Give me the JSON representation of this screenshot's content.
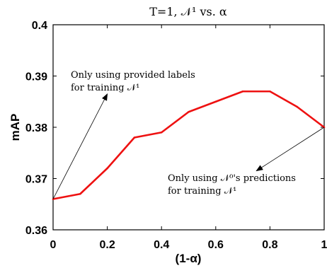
{
  "chart_data": {
    "type": "line",
    "title": "T=1, 𝒩¹ vs. α",
    "xlabel": "(1-α)",
    "ylabel": "mAP",
    "xlim": [
      0,
      1
    ],
    "ylim": [
      0.36,
      0.4
    ],
    "x_ticks": [
      0,
      0.2,
      0.4,
      0.6,
      0.8,
      1
    ],
    "y_ticks": [
      0.36,
      0.37,
      0.38,
      0.39,
      0.4
    ],
    "x_tick_labels": [
      "0",
      "0.2",
      "0.4",
      "0.6",
      "0.8",
      "1"
    ],
    "y_tick_labels": [
      "0.36",
      "0.37",
      "0.38",
      "0.39",
      "0.4"
    ],
    "grid": false,
    "series": [
      {
        "color": "#ee1111",
        "x": [
          0,
          0.1,
          0.2,
          0.3,
          0.4,
          0.5,
          0.6,
          0.7,
          0.8,
          0.9,
          1.0
        ],
        "y": [
          0.366,
          0.367,
          0.372,
          0.378,
          0.379,
          0.383,
          0.385,
          0.387,
          0.387,
          0.384,
          0.38
        ]
      }
    ],
    "annotations": [
      {
        "lines": [
          "Only using provided labels",
          "for training 𝒩¹"
        ],
        "arrow_from": [
          0,
          0.366
        ],
        "arrow_to": [
          0.2,
          0.3865
        ]
      },
      {
        "lines": [
          "Only using 𝒩⁰'s predictions",
          "for training 𝒩¹"
        ],
        "arrow_from": [
          1.0,
          0.38
        ],
        "arrow_to": [
          0.75,
          0.3715
        ]
      }
    ]
  }
}
